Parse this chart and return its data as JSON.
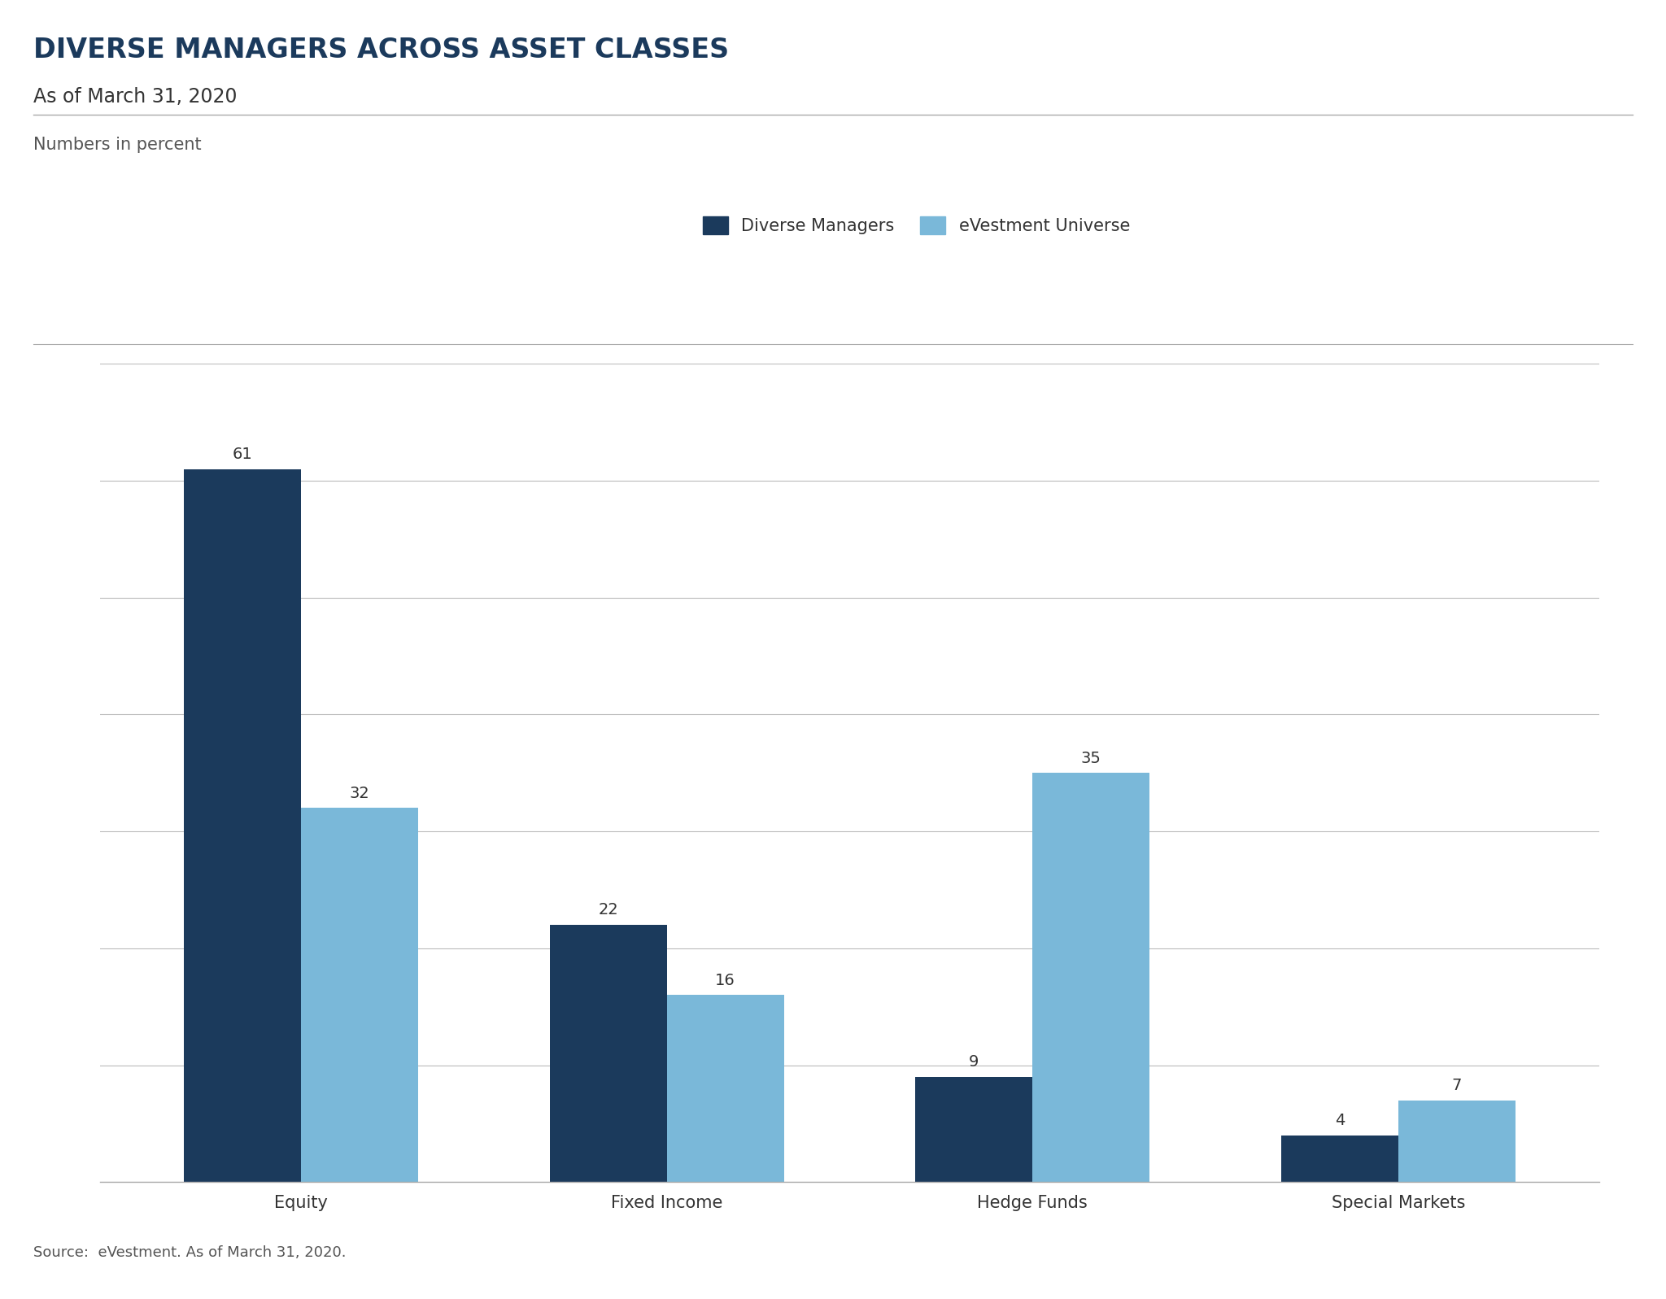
{
  "title": "DIVERSE MANAGERS ACROSS ASSET CLASSES",
  "subtitle": "As of March 31, 2020",
  "numbers_label": "Numbers in percent",
  "source": "Source:  eVestment. As of March 31, 2020.",
  "categories": [
    "Equity",
    "Fixed Income",
    "Hedge Funds",
    "Special Markets"
  ],
  "series": [
    {
      "label": "Diverse Managers",
      "color": "#1b3a5c",
      "values": [
        61,
        22,
        9,
        4
      ]
    },
    {
      "label": "eVestment Universe",
      "color": "#7ab8d9",
      "values": [
        32,
        16,
        35,
        7
      ]
    }
  ],
  "ylim": [
    0,
    70
  ],
  "yticks": [
    0,
    10,
    20,
    30,
    40,
    50,
    60,
    70
  ],
  "bar_width": 0.32,
  "background_color": "#ffffff",
  "fig_background_color": "#ffffff",
  "text_color": "#333333",
  "label_color": "#555555",
  "grid_color": "#bbbbbb",
  "title_color": "#1b3a5c",
  "title_fontsize": 24,
  "subtitle_fontsize": 17,
  "numbers_label_fontsize": 15,
  "tick_fontsize": 15,
  "legend_fontsize": 15,
  "value_fontsize": 14,
  "source_fontsize": 13
}
